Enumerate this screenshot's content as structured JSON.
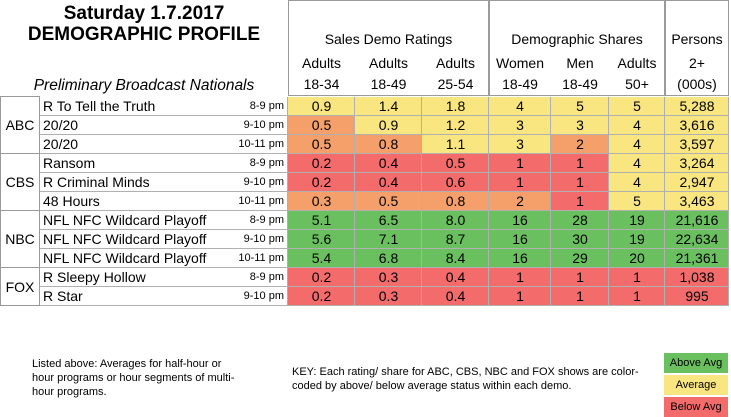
{
  "header": {
    "date": "Saturday 1.7.2017",
    "title": "DEMOGRAPHIC PROFILE",
    "subtitle": "Preliminary Broadcast Nationals"
  },
  "groups": [
    {
      "title": "Sales Demo Ratings",
      "columns": [
        {
          "l1": "Adults",
          "l2": "18-34"
        },
        {
          "l1": "Adults",
          "l2": "18-49"
        },
        {
          "l1": "Adults",
          "l2": "25-54"
        }
      ]
    },
    {
      "title": "Demographic Shares",
      "columns": [
        {
          "l1": "Women",
          "l2": "18-49"
        },
        {
          "l1": "Men",
          "l2": "18-49"
        },
        {
          "l1": "Adults",
          "l2": "50+"
        }
      ]
    },
    {
      "title": "Persons",
      "columns": [
        {
          "l1": "2+",
          "l2": "(000s)"
        }
      ]
    }
  ],
  "networks": [
    {
      "name": "ABC",
      "rows": 3
    },
    {
      "name": "CBS",
      "rows": 3
    },
    {
      "name": "NBC",
      "rows": 3
    },
    {
      "name": "FOX",
      "rows": 2
    }
  ],
  "rows": [
    {
      "show": "R To Tell the Truth",
      "time": "8-9 pm",
      "values": [
        "0.9",
        "1.4",
        "1.8",
        "4",
        "5",
        "5",
        "5,288"
      ],
      "status": [
        "avg",
        "avg",
        "avg",
        "avg",
        "avg",
        "avg",
        "avg"
      ]
    },
    {
      "show": "20/20",
      "time": "9-10 pm",
      "values": [
        "0.5",
        "0.9",
        "1.2",
        "3",
        "3",
        "4",
        "3,616"
      ],
      "status": [
        "below",
        "avg",
        "avg",
        "avg",
        "avg",
        "avg",
        "avg"
      ]
    },
    {
      "show": "20/20",
      "time": "10-11 pm",
      "values": [
        "0.5",
        "0.8",
        "1.1",
        "3",
        "2",
        "4",
        "3,597"
      ],
      "status": [
        "below",
        "below",
        "avg",
        "avg",
        "below",
        "avg",
        "avg"
      ]
    },
    {
      "show": "Ransom",
      "time": "8-9 pm",
      "values": [
        "0.2",
        "0.4",
        "0.5",
        "1",
        "1",
        "4",
        "3,264"
      ],
      "status": [
        "below",
        "below",
        "below",
        "below",
        "below",
        "avg",
        "avg"
      ]
    },
    {
      "show": "R Criminal Minds",
      "time": "9-10 pm",
      "values": [
        "0.2",
        "0.4",
        "0.6",
        "1",
        "1",
        "4",
        "2,947"
      ],
      "status": [
        "below",
        "below",
        "below",
        "below",
        "below",
        "avg",
        "avg"
      ]
    },
    {
      "show": "48 Hours",
      "time": "10-11 pm",
      "values": [
        "0.3",
        "0.5",
        "0.8",
        "2",
        "1",
        "5",
        "3,463"
      ],
      "status": [
        "below",
        "below",
        "below",
        "below",
        "below",
        "avg",
        "avg"
      ]
    },
    {
      "show": "NFL NFC Wildcard Playoff",
      "time": "8-9 pm",
      "values": [
        "5.1",
        "6.5",
        "8.0",
        "16",
        "28",
        "19",
        "21,616"
      ],
      "status": [
        "above",
        "above",
        "above",
        "above",
        "above",
        "above",
        "above"
      ]
    },
    {
      "show": "NFL NFC Wildcard Playoff",
      "time": "9-10 pm",
      "values": [
        "5.6",
        "7.1",
        "8.7",
        "16",
        "30",
        "19",
        "22,634"
      ],
      "status": [
        "above",
        "above",
        "above",
        "above",
        "above",
        "above",
        "above"
      ]
    },
    {
      "show": "NFL NFC Wildcard Playoff",
      "time": "10-11 pm",
      "values": [
        "5.4",
        "6.8",
        "8.4",
        "16",
        "29",
        "20",
        "21,361"
      ],
      "status": [
        "above",
        "above",
        "above",
        "above",
        "above",
        "above",
        "above"
      ]
    },
    {
      "show": "R Sleepy Hollow",
      "time": "8-9 pm",
      "values": [
        "0.2",
        "0.3",
        "0.4",
        "1",
        "1",
        "1",
        "1,038"
      ],
      "status": [
        "below",
        "below",
        "below",
        "below",
        "below",
        "below",
        "below"
      ]
    },
    {
      "show": "R Star",
      "time": "9-10 pm",
      "values": [
        "0.2",
        "0.3",
        "0.4",
        "1",
        "1",
        "1",
        "995"
      ],
      "status": [
        "below",
        "below",
        "below",
        "below",
        "below",
        "below",
        "below"
      ]
    }
  ],
  "colors": {
    "above": "#6abf5f",
    "avg": "#f9e680",
    "below": "#f36b6b",
    "mid_below": "#f5a06a"
  },
  "footnote": "Listed above: Averages for half-hour or hour programs or hour segments of multi-hour programs.",
  "key_text": "KEY: Each rating/ share for ABC, CBS, NBC and FOX shows are color-coded by above/ below average status within each demo.",
  "legend": {
    "above": "Above Avg",
    "average": "Average",
    "below": "Below Avg"
  }
}
